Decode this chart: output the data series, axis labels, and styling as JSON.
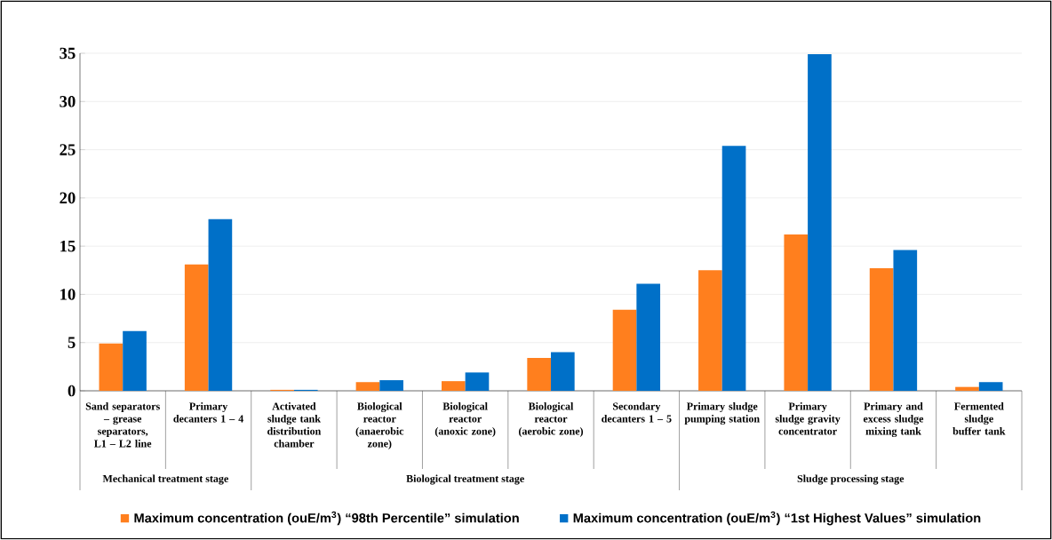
{
  "chart_data": {
    "type": "bar",
    "categories": [
      "Sand separators – grease separators, L1 – L2 line",
      "Primary decanters 1 – 4",
      "Activated sludge tank distribution chamber",
      "Biological reactor (anaerobic zone)",
      "Biological reactor (anoxic zone)",
      "Biological reactor (aerobic zone)",
      "Secondary decanters 1 – 5",
      "Primary sludge pumping station",
      "Primary sludge gravity concentrator",
      "Primary and excess sludge mixing tank",
      "Fermented sludge buffer tank"
    ],
    "series": [
      {
        "name": "Maximum concentration (ouE/m$^{3}$) “98th Percentile” simulation",
        "color": "#ff7f1e",
        "values": [
          4.9,
          13.1,
          0.1,
          0.9,
          1.0,
          3.4,
          8.4,
          12.5,
          16.2,
          12.7,
          0.4
        ]
      },
      {
        "name": "Maximum concentration (ouE/m$^{3}$) “1st Highest Values” simulation",
        "color": "#0070c8",
        "values": [
          6.2,
          17.8,
          0.1,
          1.1,
          1.9,
          4.0,
          11.1,
          25.4,
          34.9,
          14.6,
          0.9
        ]
      }
    ],
    "ylim": [
      0,
      35
    ],
    "yticks": [
      0,
      5,
      10,
      15,
      20,
      25,
      30,
      35
    ],
    "grid": "y",
    "legend": "bottom",
    "annotations": [
      "Mechanical treatment stage",
      "Biological treatment stage",
      "Sludge processing stage"
    ]
  }
}
